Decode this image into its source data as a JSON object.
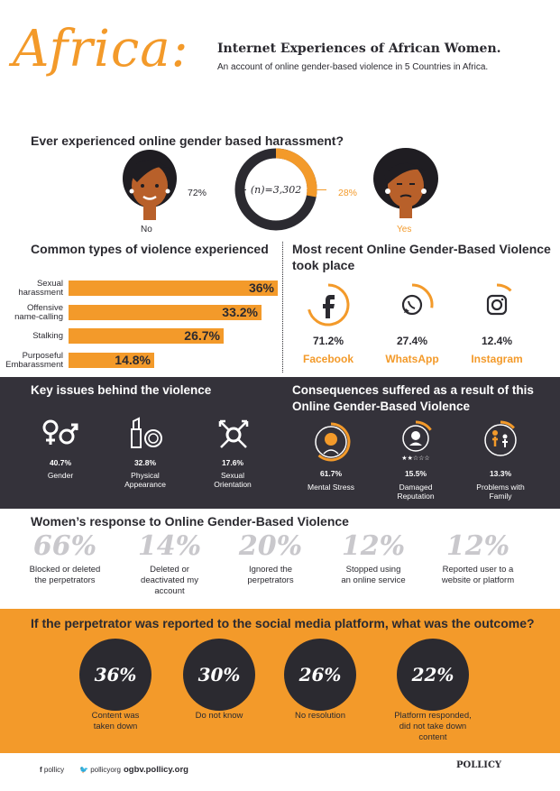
{
  "header": {
    "title": "Africa:",
    "subtitle": "Internet Experiences of African Women.",
    "description": "An account of online gender-based violence in 5 Countries in Africa."
  },
  "harassment": {
    "question": "Ever experienced online gender based harassment?",
    "no_pct": "72%",
    "yes_pct": "28%",
    "no_value": 72,
    "yes_value": 28,
    "n_label": "(n)=3,302",
    "no_label": "No",
    "yes_label": "Yes"
  },
  "violence_types": {
    "heading": "Common types of violence experienced",
    "items": [
      {
        "label_1": "Sexual",
        "label_2": "harassment",
        "value": 36,
        "display": "36%"
      },
      {
        "label_1": "Offensive",
        "label_2": "name-calling",
        "value": 33.2,
        "display": "33.2%"
      },
      {
        "label_1": "Stalking",
        "label_2": "",
        "value": 26.7,
        "display": "26.7%"
      },
      {
        "label_1": "Purposeful",
        "label_2": "Embarassment",
        "value": 14.8,
        "display": "14.8%"
      }
    ]
  },
  "platforms": {
    "heading_1": "Most recent Online Gender-Based Violence",
    "heading_2": "took place",
    "items": [
      {
        "name": "Facebook",
        "display": "71.2%",
        "value": 71.2,
        "icon": "facebook-icon"
      },
      {
        "name": "WhatsApp",
        "display": "27.4%",
        "value": 27.4,
        "icon": "whatsapp-icon"
      },
      {
        "name": "Instagram",
        "display": "12.4%",
        "value": 12.4,
        "icon": "instagram-icon"
      }
    ]
  },
  "key_issues": {
    "heading": "Key issues behind the violence",
    "items": [
      {
        "display": "40.7%",
        "label_1": "Gender",
        "label_2": ""
      },
      {
        "display": "32.8%",
        "label_1": "Physical",
        "label_2": "Appearance"
      },
      {
        "display": "17.6%",
        "label_1": "Sexual",
        "label_2": "Orientation"
      }
    ]
  },
  "consequences": {
    "heading_1": "Consequences suffered as a result of this",
    "heading_2": "Online Gender-Based Violence",
    "items": [
      {
        "display": "61.7%",
        "value": 61.7,
        "label_1": "Mental Stress",
        "label_2": ""
      },
      {
        "display": "15.5%",
        "value": 15.5,
        "label_1": "Damaged",
        "label_2": "Reputation"
      },
      {
        "display": "13.3%",
        "value": 13.3,
        "label_1": "Problems with",
        "label_2": "Family"
      }
    ]
  },
  "responses": {
    "heading": "Women’s response to Online Gender-Based Violence",
    "items": [
      {
        "pct": "66%",
        "l1": "Blocked or deleted",
        "l2": "the perpetrators",
        "l3": ""
      },
      {
        "pct": "14%",
        "l1": "Deleted or",
        "l2": "deactivated my",
        "l3": "account"
      },
      {
        "pct": "20%",
        "l1": "Ignored the",
        "l2": "perpetrators",
        "l3": ""
      },
      {
        "pct": "12%",
        "l1": "Stopped using",
        "l2": "an online service",
        "l3": ""
      },
      {
        "pct": "12%",
        "l1": "Reported user to a",
        "l2": "website or platform",
        "l3": ""
      }
    ]
  },
  "outcomes": {
    "heading": "If the perpetrator was reported to the social media platform, what was the outcome?",
    "items": [
      {
        "pct": "36%",
        "l1": "Content was",
        "l2": "taken down",
        "l3": ""
      },
      {
        "pct": "30%",
        "l1": "Do not know",
        "l2": "",
        "l3": ""
      },
      {
        "pct": "26%",
        "l1": "No resolution",
        "l2": "",
        "l3": ""
      },
      {
        "pct": "22%",
        "l1": "Platform responded,",
        "l2": "did not take down",
        "l3": "content"
      }
    ]
  },
  "footer": {
    "facebook": "pollicy",
    "twitter": "pollicyorg",
    "website": "ogbv.pollicy.org",
    "brand": "POLLICY"
  },
  "colors": {
    "accent": "#f39a2a",
    "dark": "#34323a",
    "muted": "#c9c8cc"
  }
}
